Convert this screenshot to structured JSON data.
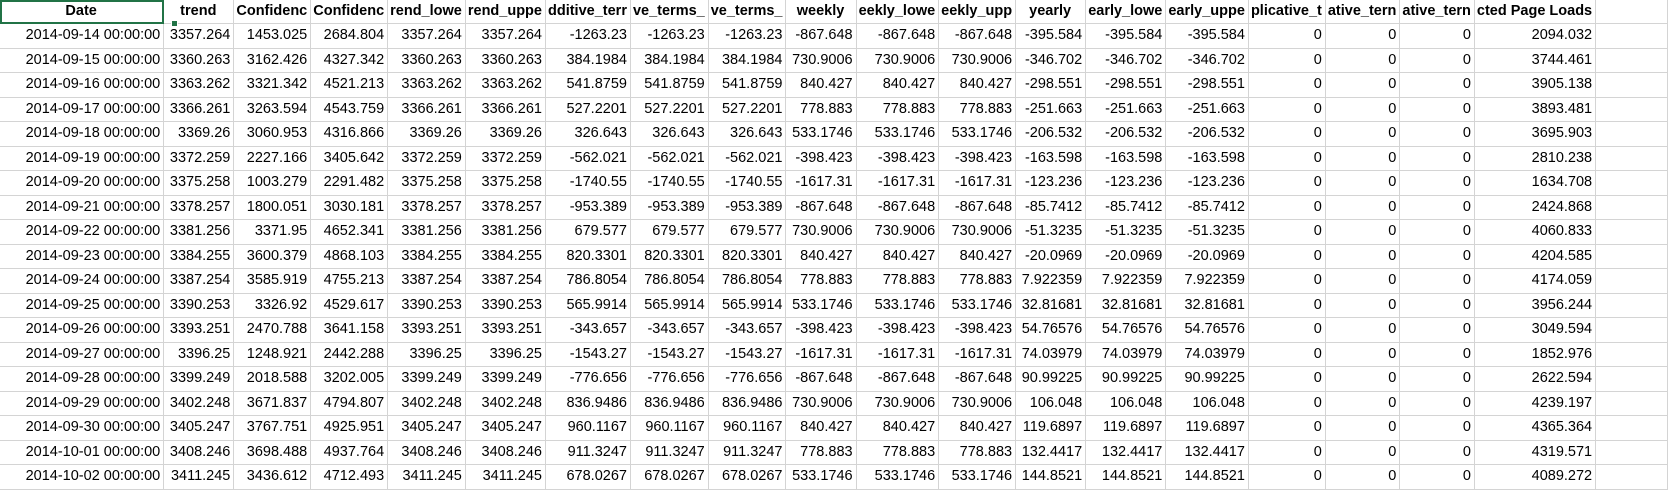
{
  "headers": [
    "Date",
    "trend",
    "Confidenc",
    "Confidenc",
    "rend_lowe",
    "rend_uppe",
    "dditive_terr",
    "ve_terms_",
    "ve_terms_",
    "weekly",
    "eekly_lowe",
    "eekly_upp",
    "yearly",
    "early_lowe",
    "early_uppe",
    "plicative_t",
    "ative_tern",
    "ative_tern",
    "cted Page Loads"
  ],
  "rows": [
    [
      "2014-09-14 00:00:00",
      "3357.264",
      "1453.025",
      "2684.804",
      "3357.264",
      "3357.264",
      "-1263.23",
      "-1263.23",
      "-1263.23",
      "-867.648",
      "-867.648",
      "-867.648",
      "-395.584",
      "-395.584",
      "-395.584",
      "0",
      "0",
      "0",
      "2094.032"
    ],
    [
      "2014-09-15 00:00:00",
      "3360.263",
      "3162.426",
      "4327.342",
      "3360.263",
      "3360.263",
      "384.1984",
      "384.1984",
      "384.1984",
      "730.9006",
      "730.9006",
      "730.9006",
      "-346.702",
      "-346.702",
      "-346.702",
      "0",
      "0",
      "0",
      "3744.461"
    ],
    [
      "2014-09-16 00:00:00",
      "3363.262",
      "3321.342",
      "4521.213",
      "3363.262",
      "3363.262",
      "541.8759",
      "541.8759",
      "541.8759",
      "840.427",
      "840.427",
      "840.427",
      "-298.551",
      "-298.551",
      "-298.551",
      "0",
      "0",
      "0",
      "3905.138"
    ],
    [
      "2014-09-17 00:00:00",
      "3366.261",
      "3263.594",
      "4543.759",
      "3366.261",
      "3366.261",
      "527.2201",
      "527.2201",
      "527.2201",
      "778.883",
      "778.883",
      "778.883",
      "-251.663",
      "-251.663",
      "-251.663",
      "0",
      "0",
      "0",
      "3893.481"
    ],
    [
      "2014-09-18 00:00:00",
      "3369.26",
      "3060.953",
      "4316.866",
      "3369.26",
      "3369.26",
      "326.643",
      "326.643",
      "326.643",
      "533.1746",
      "533.1746",
      "533.1746",
      "-206.532",
      "-206.532",
      "-206.532",
      "0",
      "0",
      "0",
      "3695.903"
    ],
    [
      "2014-09-19 00:00:00",
      "3372.259",
      "2227.166",
      "3405.642",
      "3372.259",
      "3372.259",
      "-562.021",
      "-562.021",
      "-562.021",
      "-398.423",
      "-398.423",
      "-398.423",
      "-163.598",
      "-163.598",
      "-163.598",
      "0",
      "0",
      "0",
      "2810.238"
    ],
    [
      "2014-09-20 00:00:00",
      "3375.258",
      "1003.279",
      "2291.482",
      "3375.258",
      "3375.258",
      "-1740.55",
      "-1740.55",
      "-1740.55",
      "-1617.31",
      "-1617.31",
      "-1617.31",
      "-123.236",
      "-123.236",
      "-123.236",
      "0",
      "0",
      "0",
      "1634.708"
    ],
    [
      "2014-09-21 00:00:00",
      "3378.257",
      "1800.051",
      "3030.181",
      "3378.257",
      "3378.257",
      "-953.389",
      "-953.389",
      "-953.389",
      "-867.648",
      "-867.648",
      "-867.648",
      "-85.7412",
      "-85.7412",
      "-85.7412",
      "0",
      "0",
      "0",
      "2424.868"
    ],
    [
      "2014-09-22 00:00:00",
      "3381.256",
      "3371.95",
      "4652.341",
      "3381.256",
      "3381.256",
      "679.577",
      "679.577",
      "679.577",
      "730.9006",
      "730.9006",
      "730.9006",
      "-51.3235",
      "-51.3235",
      "-51.3235",
      "0",
      "0",
      "0",
      "4060.833"
    ],
    [
      "2014-09-23 00:00:00",
      "3384.255",
      "3600.379",
      "4868.103",
      "3384.255",
      "3384.255",
      "820.3301",
      "820.3301",
      "820.3301",
      "840.427",
      "840.427",
      "840.427",
      "-20.0969",
      "-20.0969",
      "-20.0969",
      "0",
      "0",
      "0",
      "4204.585"
    ],
    [
      "2014-09-24 00:00:00",
      "3387.254",
      "3585.919",
      "4755.213",
      "3387.254",
      "3387.254",
      "786.8054",
      "786.8054",
      "786.8054",
      "778.883",
      "778.883",
      "778.883",
      "7.922359",
      "7.922359",
      "7.922359",
      "0",
      "0",
      "0",
      "4174.059"
    ],
    [
      "2014-09-25 00:00:00",
      "3390.253",
      "3326.92",
      "4529.617",
      "3390.253",
      "3390.253",
      "565.9914",
      "565.9914",
      "565.9914",
      "533.1746",
      "533.1746",
      "533.1746",
      "32.81681",
      "32.81681",
      "32.81681",
      "0",
      "0",
      "0",
      "3956.244"
    ],
    [
      "2014-09-26 00:00:00",
      "3393.251",
      "2470.788",
      "3641.158",
      "3393.251",
      "3393.251",
      "-343.657",
      "-343.657",
      "-343.657",
      "-398.423",
      "-398.423",
      "-398.423",
      "54.76576",
      "54.76576",
      "54.76576",
      "0",
      "0",
      "0",
      "3049.594"
    ],
    [
      "2014-09-27 00:00:00",
      "3396.25",
      "1248.921",
      "2442.288",
      "3396.25",
      "3396.25",
      "-1543.27",
      "-1543.27",
      "-1543.27",
      "-1617.31",
      "-1617.31",
      "-1617.31",
      "74.03979",
      "74.03979",
      "74.03979",
      "0",
      "0",
      "0",
      "1852.976"
    ],
    [
      "2014-09-28 00:00:00",
      "3399.249",
      "2018.588",
      "3202.005",
      "3399.249",
      "3399.249",
      "-776.656",
      "-776.656",
      "-776.656",
      "-867.648",
      "-867.648",
      "-867.648",
      "90.99225",
      "90.99225",
      "90.99225",
      "0",
      "0",
      "0",
      "2622.594"
    ],
    [
      "2014-09-29 00:00:00",
      "3402.248",
      "3671.837",
      "4794.807",
      "3402.248",
      "3402.248",
      "836.9486",
      "836.9486",
      "836.9486",
      "730.9006",
      "730.9006",
      "730.9006",
      "106.048",
      "106.048",
      "106.048",
      "0",
      "0",
      "0",
      "4239.197"
    ],
    [
      "2014-09-30 00:00:00",
      "3405.247",
      "3767.751",
      "4925.951",
      "3405.247",
      "3405.247",
      "960.1167",
      "960.1167",
      "960.1167",
      "840.427",
      "840.427",
      "840.427",
      "119.6897",
      "119.6897",
      "119.6897",
      "0",
      "0",
      "0",
      "4365.364"
    ],
    [
      "2014-10-01 00:00:00",
      "3408.246",
      "3698.488",
      "4937.764",
      "3408.246",
      "3408.246",
      "911.3247",
      "911.3247",
      "911.3247",
      "778.883",
      "778.883",
      "778.883",
      "132.4417",
      "132.4417",
      "132.4417",
      "0",
      "0",
      "0",
      "4319.571"
    ],
    [
      "2014-10-02 00:00:00",
      "3411.245",
      "3436.612",
      "4712.493",
      "3411.245",
      "3411.245",
      "678.0267",
      "678.0267",
      "678.0267",
      "533.1746",
      "533.1746",
      "533.1746",
      "144.8521",
      "144.8521",
      "144.8521",
      "0",
      "0",
      "0",
      "4089.272"
    ]
  ],
  "colors": {
    "grid_line": "#d4d4d4",
    "selection": "#217346"
  }
}
